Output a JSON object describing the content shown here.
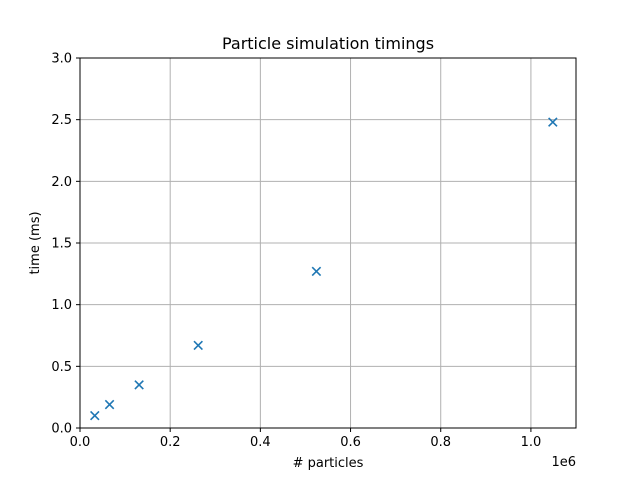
{
  "chart_data": {
    "type": "scatter",
    "title": "Particle simulation timings",
    "xlabel": "# particles",
    "ylabel": "time (ms)",
    "x_offset_label": "1e6",
    "xlim": [
      0,
      1.1
    ],
    "ylim": [
      0,
      3.0
    ],
    "x_unit_multiplier": 1000000,
    "xticks": [
      0.0,
      0.2,
      0.4,
      0.6,
      0.8,
      1.0
    ],
    "xtick_labels": [
      "0.0",
      "0.2",
      "0.4",
      "0.6",
      "0.8",
      "1.0"
    ],
    "yticks": [
      0.0,
      0.5,
      1.0,
      1.5,
      2.0,
      2.5,
      3.0
    ],
    "ytick_labels": [
      "0.0",
      "0.5",
      "1.0",
      "1.5",
      "2.0",
      "2.5",
      "3.0"
    ],
    "grid": true,
    "marker": "x",
    "marker_color": "#1f77b4",
    "series": [
      {
        "x": [
          32768,
          65536,
          131072,
          262144,
          524288,
          1048576
        ],
        "y": [
          0.1,
          0.19,
          0.35,
          0.67,
          1.27,
          2.48
        ]
      }
    ]
  }
}
